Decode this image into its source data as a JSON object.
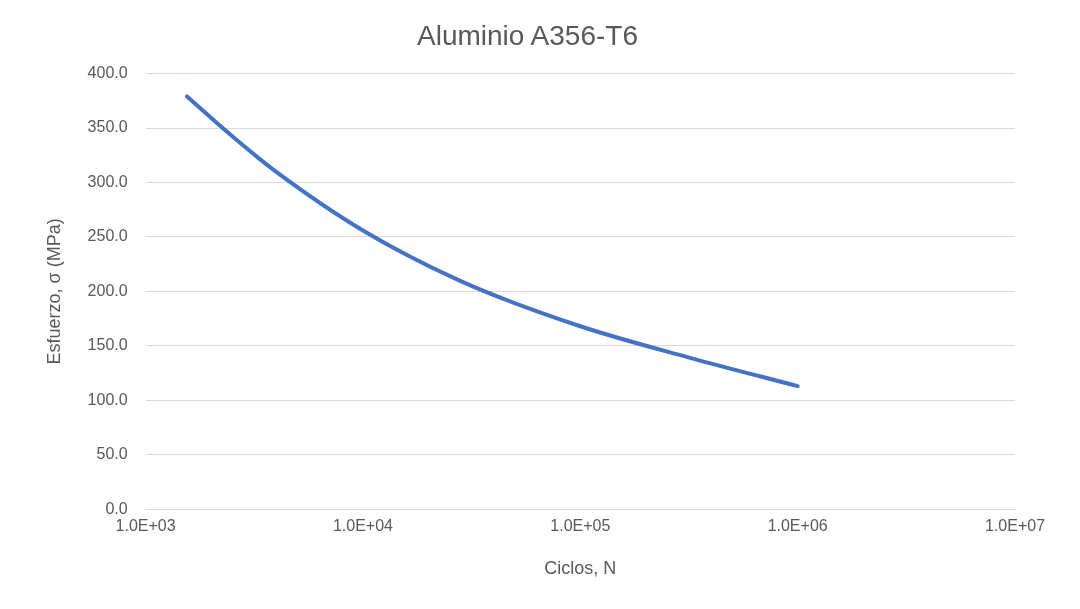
{
  "chart_data": {
    "type": "line",
    "title": "Aluminio A356-T6",
    "xlabel": "Ciclos, N",
    "ylabel": "Esfuerzo, σ (MPa)",
    "log": "x",
    "grid": "y",
    "legend": false,
    "marker": "none",
    "line_style": "solid",
    "xlim": [
      1000,
      10000000
    ],
    "xticks": [
      {
        "value": 1000,
        "label": "1.0E+03"
      },
      {
        "value": 10000,
        "label": "1.0E+04"
      },
      {
        "value": 100000,
        "label": "1.0E+05"
      },
      {
        "value": 1000000,
        "label": "1.0E+06"
      },
      {
        "value": 10000000,
        "label": "1.0E+07"
      }
    ],
    "ylim": [
      0,
      400
    ],
    "yticks": [
      {
        "value": 0,
        "label": "0.0"
      },
      {
        "value": 50,
        "label": "50.0"
      },
      {
        "value": 100,
        "label": "100.0"
      },
      {
        "value": 150,
        "label": "150.0"
      },
      {
        "value": 200,
        "label": "200.0"
      },
      {
        "value": 250,
        "label": "250.0"
      },
      {
        "value": 300,
        "label": "300.0"
      },
      {
        "value": 350,
        "label": "350.0"
      },
      {
        "value": 400,
        "label": "400.0"
      }
    ],
    "x": [
      1550,
      2520,
      3920,
      10000,
      28500,
      100000,
      320000,
      1000000
    ],
    "series": [
      {
        "color": "#4472c4",
        "values": [
          379,
          342,
          311,
          256,
          209,
          168,
          139,
          113
        ]
      }
    ]
  }
}
